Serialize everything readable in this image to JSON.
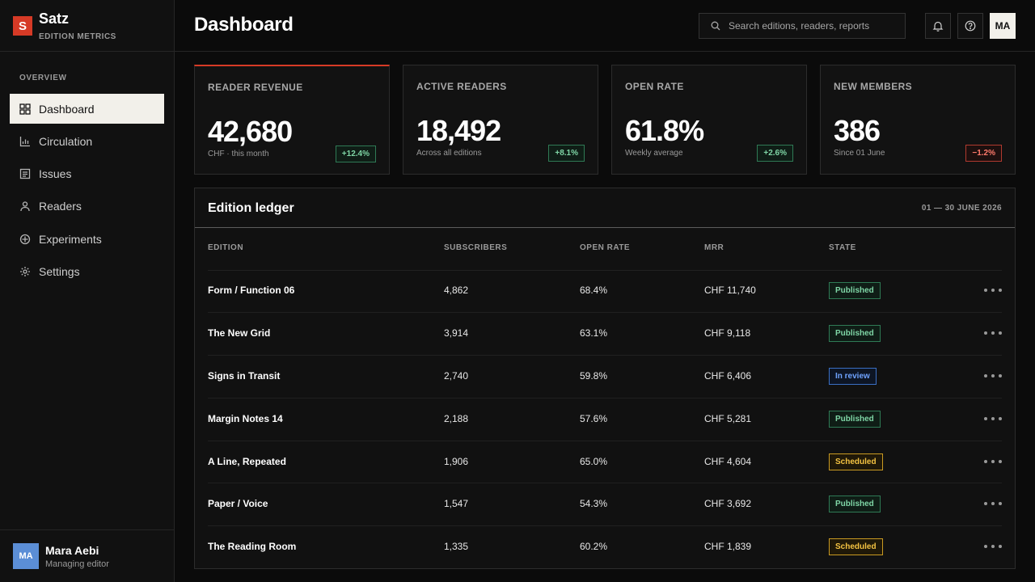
{
  "brand": {
    "logo_letter": "S",
    "name": "Satz",
    "subtitle": "EDITION METRICS",
    "accent": "#d63a26"
  },
  "sidebar": {
    "section_label": "OVERVIEW",
    "items": [
      {
        "label": "Dashboard",
        "icon": "grid-icon",
        "active": true
      },
      {
        "label": "Circulation",
        "icon": "bar-chart-icon",
        "active": false
      },
      {
        "label": "Issues",
        "icon": "document-icon",
        "active": false
      },
      {
        "label": "Readers",
        "icon": "user-icon",
        "active": false
      },
      {
        "label": "Experiments",
        "icon": "crosshair-icon",
        "active": false
      },
      {
        "label": "Settings",
        "icon": "gear-icon",
        "active": false
      }
    ]
  },
  "user": {
    "initials": "MA",
    "name": "Mara Aebi",
    "role": "Managing editor"
  },
  "header": {
    "title": "Dashboard",
    "search_placeholder": "Search editions, readers, reports",
    "avatar_initials": "MA"
  },
  "kpis": [
    {
      "label": "READER REVENUE",
      "value": "42,680",
      "note": "CHF · this month",
      "delta": "+12.4%",
      "trend": "up"
    },
    {
      "label": "ACTIVE READERS",
      "value": "18,492",
      "note": "Across all editions",
      "delta": "+8.1%",
      "trend": "up"
    },
    {
      "label": "OPEN RATE",
      "value": "61.8%",
      "note": "Weekly average",
      "delta": "+2.6%",
      "trend": "up"
    },
    {
      "label": "NEW MEMBERS",
      "value": "386",
      "note": "Since 01 June",
      "delta": "−1.2%",
      "trend": "down"
    }
  ],
  "ledger": {
    "title": "Edition ledger",
    "range": "01 — 30 JUNE 2026",
    "columns": [
      "EDITION",
      "SUBSCRIBERS",
      "OPEN RATE",
      "MRR",
      "STATE"
    ],
    "rows": [
      {
        "edition": "Form / Function 06",
        "subscribers": "4,862",
        "open_rate": "68.4%",
        "mrr": "CHF 11,740",
        "state": "Published"
      },
      {
        "edition": "The New Grid",
        "subscribers": "3,914",
        "open_rate": "63.1%",
        "mrr": "CHF 9,118",
        "state": "Published"
      },
      {
        "edition": "Signs in Transit",
        "subscribers": "2,740",
        "open_rate": "59.8%",
        "mrr": "CHF 6,406",
        "state": "In review"
      },
      {
        "edition": "Margin Notes 14",
        "subscribers": "2,188",
        "open_rate": "57.6%",
        "mrr": "CHF 5,281",
        "state": "Published"
      },
      {
        "edition": "A Line, Repeated",
        "subscribers": "1,906",
        "open_rate": "65.0%",
        "mrr": "CHF 4,604",
        "state": "Scheduled"
      },
      {
        "edition": "Paper / Voice",
        "subscribers": "1,547",
        "open_rate": "54.3%",
        "mrr": "CHF 3,692",
        "state": "Published"
      },
      {
        "edition": "The Reading Room",
        "subscribers": "1,335",
        "open_rate": "60.2%",
        "mrr": "CHF 1,839",
        "state": "Scheduled"
      }
    ]
  }
}
